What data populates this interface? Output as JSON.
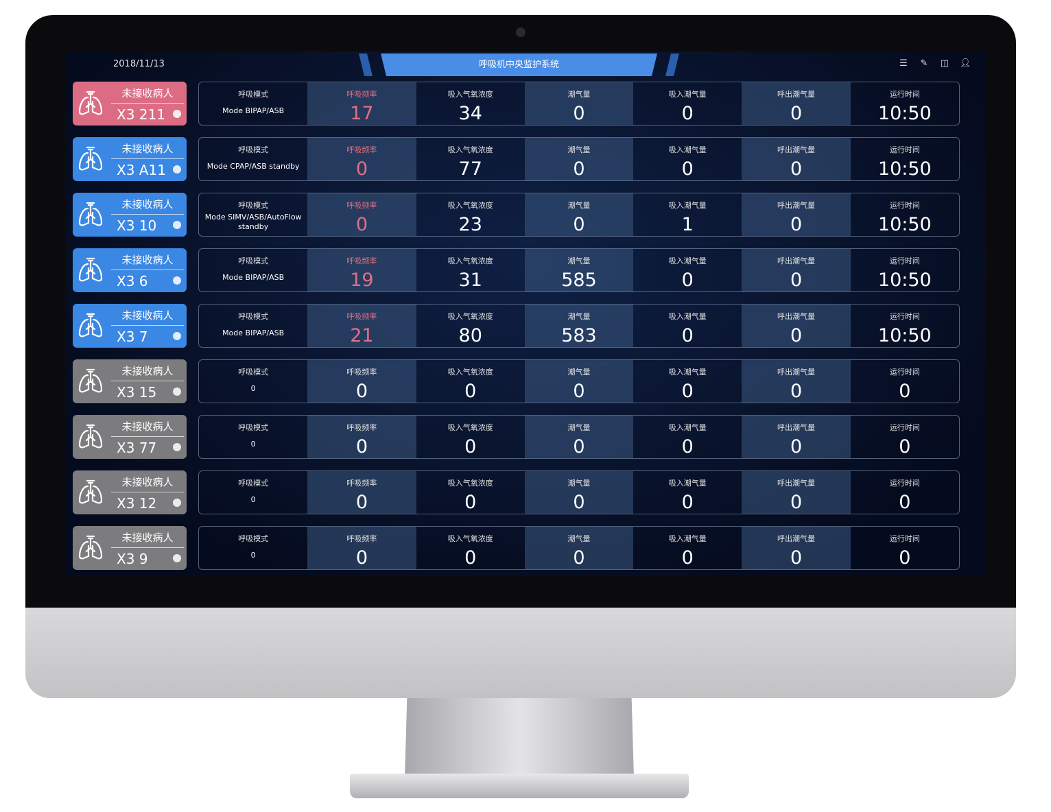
{
  "header": {
    "date": "2018/11/13",
    "title": "呼吸机中央监护系统",
    "icons": [
      "menu-list-icon",
      "edit-icon",
      "layout-icon",
      "user-icon"
    ]
  },
  "labels": [
    "呼吸模式",
    "呼吸频率",
    "吸入气氧浓度",
    "潮气量",
    "吸入潮气量",
    "呼出潮气量",
    "运行时间"
  ],
  "colors": {
    "pink": "#dc6c84",
    "blue": "#3a87e4",
    "gray": "#7c7c7e",
    "alert_text": "#e06f86"
  },
  "rows": [
    {
      "status": "未接收病人",
      "bed": "X3 211",
      "color": "pink",
      "alert": true,
      "values": [
        "Mode BIPAP/ASB",
        "17",
        "34",
        "0",
        "0",
        "0",
        "10:50"
      ]
    },
    {
      "status": "未接收病人",
      "bed": "X3 A11",
      "color": "blue",
      "alert": true,
      "values": [
        "Mode CPAP/ASB standby",
        "0",
        "77",
        "0",
        "0",
        "0",
        "10:50"
      ]
    },
    {
      "status": "未接收病人",
      "bed": "X3 10",
      "color": "blue",
      "alert": true,
      "values": [
        "Mode SIMV/ASB/AutoFlow standby",
        "0",
        "23",
        "0",
        "1",
        "0",
        "10:50"
      ]
    },
    {
      "status": "未接收病人",
      "bed": "X3 6",
      "color": "blue",
      "alert": true,
      "values": [
        "Mode BIPAP/ASB",
        "19",
        "31",
        "585",
        "0",
        "0",
        "10:50"
      ]
    },
    {
      "status": "未接收病人",
      "bed": "X3 7",
      "color": "blue",
      "alert": true,
      "values": [
        "Mode BIPAP/ASB",
        "21",
        "80",
        "583",
        "0",
        "0",
        "10:50"
      ]
    },
    {
      "status": "未接收病人",
      "bed": "X3 15",
      "color": "gray",
      "alert": false,
      "values": [
        "0",
        "0",
        "0",
        "0",
        "0",
        "0",
        "0"
      ]
    },
    {
      "status": "未接收病人",
      "bed": "X3 77",
      "color": "gray",
      "alert": false,
      "values": [
        "0",
        "0",
        "0",
        "0",
        "0",
        "0",
        "0"
      ]
    },
    {
      "status": "未接收病人",
      "bed": "X3 12",
      "color": "gray",
      "alert": false,
      "values": [
        "0",
        "0",
        "0",
        "0",
        "0",
        "0",
        "0"
      ]
    },
    {
      "status": "未接收病人",
      "bed": "X3 9",
      "color": "gray",
      "alert": false,
      "values": [
        "0",
        "0",
        "0",
        "0",
        "0",
        "0",
        "0"
      ]
    }
  ]
}
